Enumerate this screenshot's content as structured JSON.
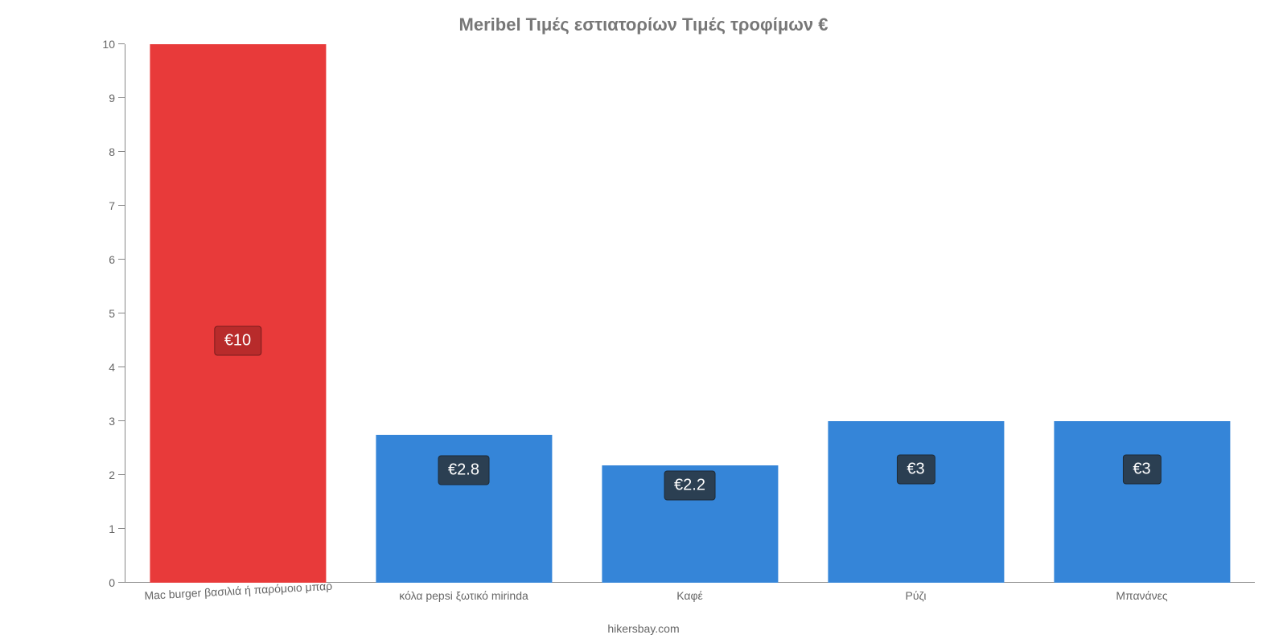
{
  "chart": {
    "type": "bar",
    "title": "Meribel Τιμές εστιατορίων Τιμές τροφίμων €",
    "title_fontsize": 22,
    "title_color": "#777777",
    "background_color": "#ffffff",
    "axis_color": "#888888",
    "label_color": "#666666",
    "label_fontsize": 14,
    "bar_value_fontsize": 20,
    "bar_value_text_color": "#ffffff",
    "bar_width_ratio": 0.78,
    "ylim": [
      0,
      10
    ],
    "ytick_step": 1,
    "categories": [
      "Mac burger βασιλιά ή παρόμοιο μπαρ",
      "κόλα pepsi ξωτικό mirinda",
      "Καφέ",
      "Ρύζι",
      "Μπανάνες"
    ],
    "values": [
      10,
      2.75,
      2.18,
      3,
      3
    ],
    "value_labels": [
      "€10",
      "€2.8",
      "€2.2",
      "€3",
      "€3"
    ],
    "bar_colors": [
      "#e83a3a",
      "#3585d8",
      "#3585d8",
      "#3585d8",
      "#3585d8"
    ],
    "value_badge_colors": [
      "#b82b2b",
      "#2b3f52",
      "#2b3f52",
      "#2b3f52",
      "#2b3f52"
    ],
    "value_label_anchor": [
      0.45,
      0.76,
      0.83,
      0.7,
      0.7
    ],
    "first_x_label_rotation_deg": -3,
    "footer": "hikersbay.com"
  }
}
